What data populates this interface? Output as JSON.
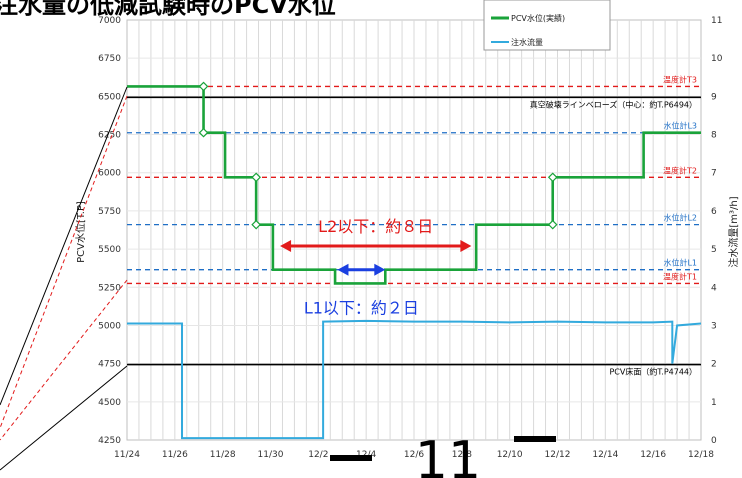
{
  "page": {
    "heading": "注水量の低減試験時のPCV水位",
    "page_number": "11"
  },
  "chart_data": {
    "type": "line",
    "x_axis": {
      "ticks": [
        "11/24",
        "11/26",
        "11/28",
        "11/30",
        "12/2",
        "12/4",
        "12/6",
        "12/8",
        "12/10",
        "12/12",
        "12/14",
        "12/16",
        "12/18"
      ],
      "day_range": [
        0,
        24
      ]
    },
    "y_left": {
      "label": "PCV水位[T.P]",
      "min": 4250,
      "max": 7000,
      "step": 250
    },
    "y_right": {
      "label": "注水流量[m³/h]",
      "min": 0,
      "max": 11,
      "step": 1
    },
    "legend": {
      "position": "top-right",
      "entries": [
        "PCV水位(実績)",
        "注水流量"
      ]
    },
    "series": [
      {
        "name": "PCV水位(実績)",
        "color": "#1aa33a",
        "axis": "left",
        "shape": "step",
        "points": [
          [
            0,
            6565
          ],
          [
            3.2,
            6565
          ],
          [
            3.2,
            6262
          ],
          [
            4.1,
            6262
          ],
          [
            4.1,
            5970
          ],
          [
            5.4,
            5970
          ],
          [
            5.4,
            5660
          ],
          [
            6.1,
            5660
          ],
          [
            6.1,
            5365
          ],
          [
            8.7,
            5365
          ],
          [
            8.7,
            5275
          ],
          [
            10.8,
            5275
          ],
          [
            10.8,
            5365
          ],
          [
            14.6,
            5365
          ],
          [
            14.6,
            5660
          ],
          [
            17.8,
            5660
          ],
          [
            17.8,
            5970
          ],
          [
            21.6,
            5970
          ],
          [
            21.6,
            6262
          ],
          [
            24,
            6262
          ]
        ],
        "markers": [
          [
            3.2,
            6565
          ],
          [
            3.2,
            6262
          ],
          [
            5.4,
            5970
          ],
          [
            5.4,
            5660
          ],
          [
            17.8,
            5970
          ],
          [
            17.8,
            5660
          ]
        ]
      },
      {
        "name": "注水流量",
        "color": "#33aadd",
        "axis": "right",
        "shape": "line",
        "points": [
          [
            0,
            3.05
          ],
          [
            2.3,
            3.05
          ],
          [
            2.3,
            0.05
          ],
          [
            8.2,
            0.05
          ],
          [
            8.2,
            3.1
          ],
          [
            10,
            3.12
          ],
          [
            12,
            3.1
          ],
          [
            14,
            3.1
          ],
          [
            16,
            3.08
          ],
          [
            18,
            3.1
          ],
          [
            20,
            3.08
          ],
          [
            22,
            3.08
          ],
          [
            22.8,
            3.1
          ],
          [
            22.8,
            2.0
          ],
          [
            23.0,
            3.0
          ],
          [
            24,
            3.05
          ]
        ]
      }
    ],
    "reference_lines": [
      {
        "label": "温度計T3",
        "value": 6565,
        "color": "#e21a1a",
        "style": "dashed"
      },
      {
        "label": "真空破壊ラインベローズ（中心：約T.P6494）",
        "value": 6494,
        "color": "#000000",
        "style": "solid"
      },
      {
        "label": "水位計L3",
        "value": 6262,
        "color": "#1f6fc6",
        "style": "dashed"
      },
      {
        "label": "温度計T2",
        "value": 5970,
        "color": "#e21a1a",
        "style": "dashed"
      },
      {
        "label": "水位計L2",
        "value": 5660,
        "color": "#1f6fc6",
        "style": "dashed"
      },
      {
        "label": "水位計L1",
        "value": 5365,
        "color": "#1f6fc6",
        "style": "dashed"
      },
      {
        "label": "温度計T1",
        "value": 5275,
        "color": "#e21a1a",
        "style": "dashed"
      },
      {
        "label": "PCV床面（約T.P4744）",
        "value": 4744,
        "color": "#000000",
        "style": "solid"
      }
    ],
    "annotations": [
      {
        "text": "L2以下：約８日",
        "color": "#e21a1a",
        "from_day": 6.4,
        "to_day": 14.4,
        "level": 5520
      },
      {
        "text": "L1以下：約２日",
        "color": "#1a3fe0",
        "from_day": 8.8,
        "to_day": 10.8,
        "level": 5365
      }
    ]
  }
}
